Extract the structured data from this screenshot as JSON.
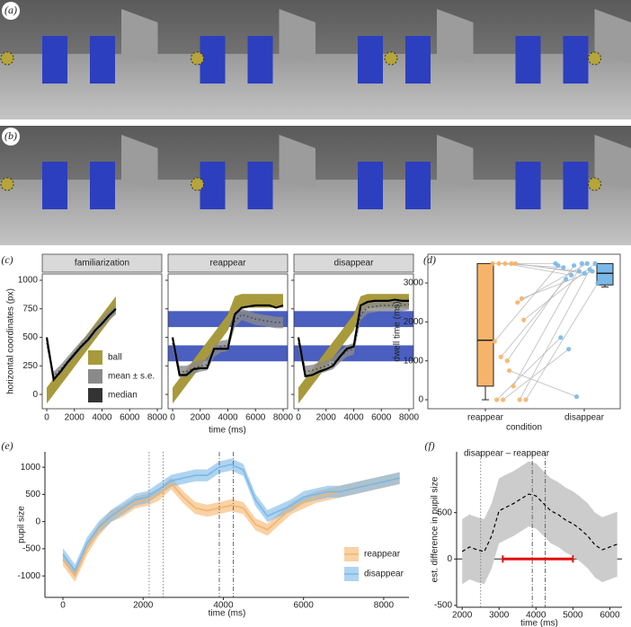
{
  "panel_labels": [
    "(a)",
    "(b)",
    "(c)",
    "(d)",
    "(e)",
    "(f)"
  ],
  "chart_data": [
    {
      "type": "facet_line",
      "ylabel": "horizontal coordinates (px)",
      "xlabel": "time (ms)",
      "xlim": [
        -325,
        8325
      ],
      "ylim": [
        -125,
        1055
      ],
      "xticks": [
        0,
        2000,
        4000,
        6000,
        8000
      ],
      "yticks": [
        0,
        250,
        500,
        750,
        1000
      ],
      "x": [
        0,
        500,
        1000,
        1500,
        2000,
        2500,
        3000,
        3500,
        4000,
        4500,
        5000,
        5500,
        6000,
        6500,
        7000,
        7500,
        8000
      ],
      "facets": [
        {
          "title": "familiarization",
          "occluders": [],
          "series": [
            {
              "name": "ball",
              "color": "#a89a3c",
              "lower": [
                -80,
                0,
                80,
                160,
                240,
                320,
                400,
                480,
                560,
                640,
                720,
                null,
                null,
                null,
                null,
                null,
                null
              ],
              "upper": [
                60,
                140,
                220,
                300,
                380,
                460,
                540,
                620,
                700,
                780,
                860,
                null,
                null,
                null,
                null,
                null,
                null
              ]
            },
            {
              "name": "mean ± s.e.",
              "color": "#8a8a8a",
              "values": [
                450,
                160,
                220,
                290,
                360,
                430,
                490,
                560,
                630,
                690,
                740,
                null,
                null,
                null,
                null,
                null,
                null
              ],
              "se": 40
            },
            {
              "name": "median",
              "color": "#000000",
              "values": [
                500,
                130,
                200,
                280,
                350,
                420,
                480,
                560,
                620,
                690,
                750,
                null,
                null,
                null,
                null,
                null,
                null
              ]
            }
          ]
        },
        {
          "title": "reappear",
          "occluders": [
            [
              590,
              730
            ],
            [
              290,
              430
            ]
          ],
          "series": [
            {
              "name": "ball",
              "color": "#a89a3c",
              "lower": [
                -80,
                0,
                80,
                160,
                240,
                320,
                400,
                480,
                560,
                720,
                760,
                760,
                760,
                760,
                760,
                760,
                760
              ],
              "upper": [
                60,
                140,
                220,
                300,
                380,
                460,
                540,
                620,
                700,
                860,
                880,
                880,
                880,
                880,
                880,
                880,
                880
              ]
            },
            {
              "name": "mean ± s.e.",
              "color": "#8a8a8a",
              "values": [
                450,
                200,
                200,
                230,
                250,
                260,
                380,
                420,
                430,
                640,
                700,
                680,
                660,
                650,
                640,
                630,
                630
              ],
              "se": 50
            },
            {
              "name": "median",
              "color": "#000000",
              "values": [
                500,
                170,
                170,
                220,
                230,
                230,
                400,
                400,
                400,
                700,
                760,
                770,
                780,
                780,
                780,
                760,
                780
              ]
            }
          ]
        },
        {
          "title": "disappear",
          "occluders": [
            [
              590,
              730
            ],
            [
              290,
              430
            ]
          ],
          "series": [
            {
              "name": "ball",
              "color": "#a89a3c",
              "lower": [
                -80,
                0,
                80,
                160,
                240,
                320,
                400,
                480,
                560,
                720,
                760,
                760,
                760,
                760,
                760,
                760,
                760
              ],
              "upper": [
                60,
                140,
                220,
                300,
                380,
                460,
                540,
                620,
                700,
                860,
                880,
                880,
                880,
                880,
                880,
                880,
                880
              ]
            },
            {
              "name": "mean ± s.e.",
              "color": "#8a8a8a",
              "values": [
                450,
                200,
                210,
                230,
                250,
                270,
                330,
                380,
                400,
                700,
                760,
                770,
                780,
                780,
                780,
                780,
                790
              ],
              "se": 50
            },
            {
              "name": "median",
              "color": "#000000",
              "values": [
                500,
                160,
                170,
                200,
                220,
                250,
                330,
                400,
                420,
                780,
                810,
                820,
                820,
                820,
                830,
                820,
                820
              ]
            }
          ]
        }
      ]
    },
    {
      "type": "box_strip",
      "ylabel": "dwell time (ms)",
      "xlabel": "condition",
      "categories": [
        "reappear",
        "disappear"
      ],
      "ylim": [
        -230,
        3740
      ],
      "yticks": [
        0,
        1000,
        2000,
        3000
      ],
      "series": [
        {
          "color": "#f5b46a",
          "box": {
            "min": 0,
            "q1": 350,
            "median": 1530,
            "q3": 3500,
            "max": 3500
          },
          "values": [
            3500,
            3500,
            3500,
            3500,
            2500,
            2050,
            1500,
            1100,
            1000,
            350,
            0,
            0,
            0,
            0,
            750,
            3500,
            2600
          ]
        },
        {
          "color": "#7ab8e8",
          "box": {
            "min": 2900,
            "q1": 2950,
            "median": 3250,
            "q3": 3500,
            "max": 3500
          },
          "values": [
            3500,
            3400,
            3200,
            3300,
            3500,
            3500,
            3450,
            3100,
            3450,
            3500,
            3350,
            3000,
            1600,
            1300,
            80,
            3250,
            3300
          ]
        }
      ]
    },
    {
      "type": "line_band",
      "ylabel": "pupil size",
      "xlabel": "time (ms)",
      "xlim": [
        -448,
        8630
      ],
      "ylim": [
        -1394,
        1283
      ],
      "xticks": [
        0,
        2000,
        4000,
        6000,
        8000
      ],
      "yticks": [
        -1000,
        -500,
        0,
        500,
        1000
      ],
      "dotted_lines": [
        2150,
        2500
      ],
      "dashdot_lines": [
        3900,
        4250
      ],
      "legend": "bottom-right",
      "x": [
        0,
        300,
        600,
        900,
        1200,
        1500,
        1800,
        2100,
        2400,
        2700,
        3000,
        3300,
        3600,
        3900,
        4200,
        4500,
        4800,
        5100,
        5400,
        5700,
        6000,
        6300,
        6600,
        6900,
        7200,
        7500,
        7800,
        8100,
        8400
      ],
      "series": [
        {
          "name": "reappear",
          "color": "#f5b46a",
          "se": 110,
          "values": [
            -700,
            -1000,
            -500,
            -150,
            100,
            200,
            350,
            400,
            500,
            700,
            450,
            250,
            200,
            250,
            300,
            250,
            -50,
            -150,
            50,
            250,
            350,
            450,
            500,
            550,
            600,
            650,
            700,
            750,
            800
          ]
        },
        {
          "name": "disappear",
          "color": "#7ab8e8",
          "se": 110,
          "values": [
            -600,
            -900,
            -400,
            -100,
            100,
            250,
            400,
            450,
            600,
            750,
            800,
            850,
            850,
            1000,
            1050,
            950,
            400,
            100,
            200,
            300,
            450,
            500,
            550,
            550,
            600,
            650,
            700,
            750,
            800
          ]
        }
      ]
    },
    {
      "type": "line_band",
      "title": "disappear – reappear",
      "ylabel": "est. difference in pupil size",
      "xlabel": "time (ms)",
      "xlim": [
        1850,
        6330
      ],
      "ylim": [
        -520,
        1155
      ],
      "xticks": [
        2000,
        3000,
        4000,
        5000,
        6000
      ],
      "yticks": [
        -500,
        0,
        500
      ],
      "dotted_lines": [
        2500
      ],
      "dashdot_lines": [
        3900,
        4250
      ],
      "hline": 0,
      "significant": [
        3100,
        5000
      ],
      "x": [
        2000,
        2200,
        2400,
        2600,
        2800,
        3000,
        3200,
        3400,
        3600,
        3800,
        4000,
        4200,
        4400,
        4600,
        4800,
        5000,
        5200,
        5400,
        5600,
        5800,
        6000,
        6200
      ],
      "series": [
        {
          "color": "#000000",
          "se": 350,
          "values": [
            80,
            130,
            100,
            80,
            250,
            520,
            560,
            600,
            650,
            700,
            680,
            600,
            520,
            480,
            420,
            380,
            320,
            250,
            150,
            100,
            130,
            160
          ]
        }
      ]
    }
  ]
}
